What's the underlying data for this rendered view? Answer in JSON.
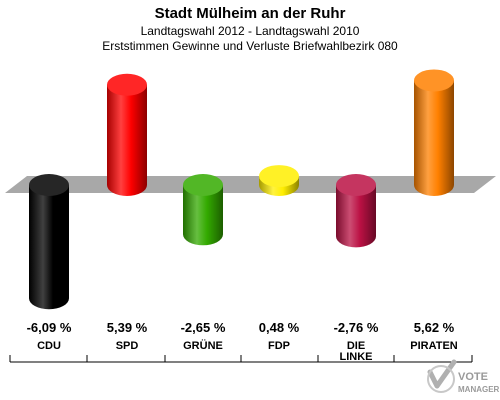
{
  "header": {
    "title": "Stadt Mülheim an der Ruhr",
    "subtitle": "Landtagswahl 2012 - Landtagswahl 2010",
    "subtitle2": "Erststimmen Gewinne und Verluste Briefwahlbezirk 080"
  },
  "logo": {
    "text_top": "VOTE",
    "text_bottom": "MANAGER"
  },
  "chart_data": {
    "type": "bar",
    "title": "Stadt Mülheim an der Ruhr",
    "subtitle": "Landtagswahl 2012 - Landtagswahl 2010 / Erststimmen Gewinne und Verluste Briefwahlbezirk 080",
    "categories": [
      "CDU",
      "SPD",
      "GRÜNE",
      "FDP",
      "DIE LINKE",
      "PIRATEN"
    ],
    "category_lines": [
      [
        "CDU"
      ],
      [
        "SPD"
      ],
      [
        "GRÜNE"
      ],
      [
        "FDP"
      ],
      [
        "DIE",
        "LINKE"
      ],
      [
        "PIRATEN"
      ]
    ],
    "values": [
      -6.09,
      5.39,
      -2.65,
      0.48,
      -2.76,
      5.62
    ],
    "value_labels": [
      "-6,09 %",
      "5,39 %",
      "-2,65 %",
      "0,48 %",
      "-2,76 %",
      "5,62 %"
    ],
    "colors": [
      "#000000",
      "#ff0000",
      "#33aa00",
      "#ffee00",
      "#bb1144",
      "#ff8000"
    ],
    "unit": "%",
    "grid": false,
    "legend": "none"
  }
}
